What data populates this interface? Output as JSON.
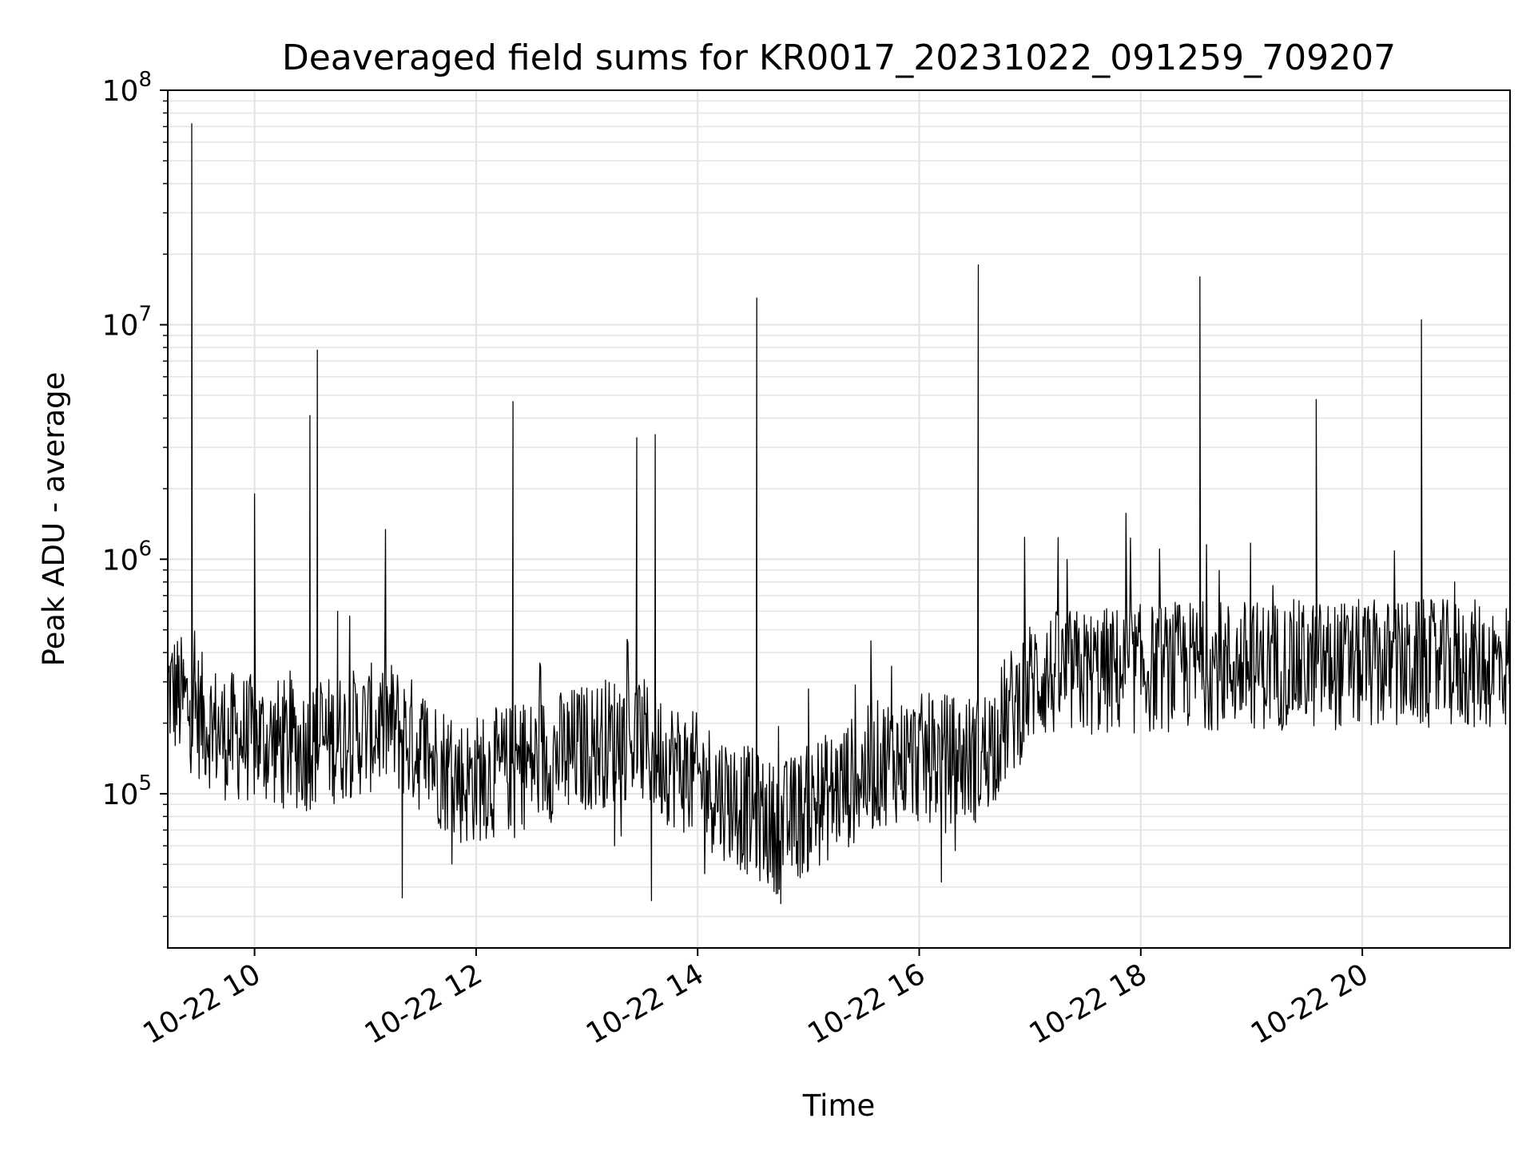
{
  "chart_data": {
    "type": "line",
    "title": "Deaveraged field sums for KR0017_20231022_091259_709207",
    "xlabel": "Time",
    "ylabel": "Peak ADU - average",
    "y_scale": "log",
    "xlim": [
      "2023-10-22 09:13",
      "2023-10-22 21:20"
    ],
    "ylim": [
      22000,
      100000000
    ],
    "x_ticks": [
      "10-22 10",
      "10-22 12",
      "10-22 14",
      "10-22 16",
      "10-22 18",
      "10-22 20"
    ],
    "y_ticks": [
      "10^5",
      "10^6",
      "10^7",
      "10^8"
    ],
    "grid": true,
    "line_color": "#000000",
    "series": [
      {
        "values": [
          {
            "x": "2023-10-22 09:13",
            "y": 320000
          },
          {
            "x": "2023-10-22 09:25",
            "y": 250000
          },
          {
            "x": "2023-10-22 09:26",
            "y": 72000000
          },
          {
            "x": "2023-10-22 09:28",
            "y": 300000
          },
          {
            "x": "2023-10-22 09:40",
            "y": 180000
          },
          {
            "x": "2023-10-22 10:00",
            "y": 1900000
          },
          {
            "x": "2023-10-22 10:02",
            "y": 160000
          },
          {
            "x": "2023-10-22 10:28",
            "y": 150000
          },
          {
            "x": "2023-10-22 10:30",
            "y": 4100000
          },
          {
            "x": "2023-10-22 10:34",
            "y": 7800000
          },
          {
            "x": "2023-10-22 10:45",
            "y": 600000
          },
          {
            "x": "2023-10-22 11:05",
            "y": 160000
          },
          {
            "x": "2023-10-22 11:20",
            "y": 36000
          },
          {
            "x": "2023-10-22 11:45",
            "y": 130000
          },
          {
            "x": "2023-10-22 12:20",
            "y": 4700000
          },
          {
            "x": "2023-10-22 12:25",
            "y": 200000
          },
          {
            "x": "2023-10-22 12:50",
            "y": 90000
          },
          {
            "x": "2023-10-22 13:15",
            "y": 60000
          },
          {
            "x": "2023-10-22 13:27",
            "y": 3300000
          },
          {
            "x": "2023-10-22 13:35",
            "y": 35000
          },
          {
            "x": "2023-10-22 13:37",
            "y": 3400000
          },
          {
            "x": "2023-10-22 13:50",
            "y": 180000
          },
          {
            "x": "2023-10-22 14:32",
            "y": 13000000
          },
          {
            "x": "2023-10-22 14:45",
            "y": 34000
          },
          {
            "x": "2023-10-22 15:00",
            "y": 280000
          },
          {
            "x": "2023-10-22 15:45",
            "y": 350000
          },
          {
            "x": "2023-10-22 16:12",
            "y": 42000
          },
          {
            "x": "2023-10-22 16:32",
            "y": 18000000
          },
          {
            "x": "2023-10-22 17:00",
            "y": 350000
          },
          {
            "x": "2023-10-22 18:00",
            "y": 330000
          },
          {
            "x": "2023-10-22 18:32",
            "y": 16000000
          },
          {
            "x": "2023-10-22 19:00",
            "y": 200000
          },
          {
            "x": "2023-10-22 19:35",
            "y": 4800000
          },
          {
            "x": "2023-10-22 20:00",
            "y": 250000
          },
          {
            "x": "2023-10-22 20:32",
            "y": 10500000
          },
          {
            "x": "2023-10-22 20:50",
            "y": 800000
          },
          {
            "x": "2023-10-22 21:20",
            "y": 600000
          }
        ]
      }
    ]
  }
}
